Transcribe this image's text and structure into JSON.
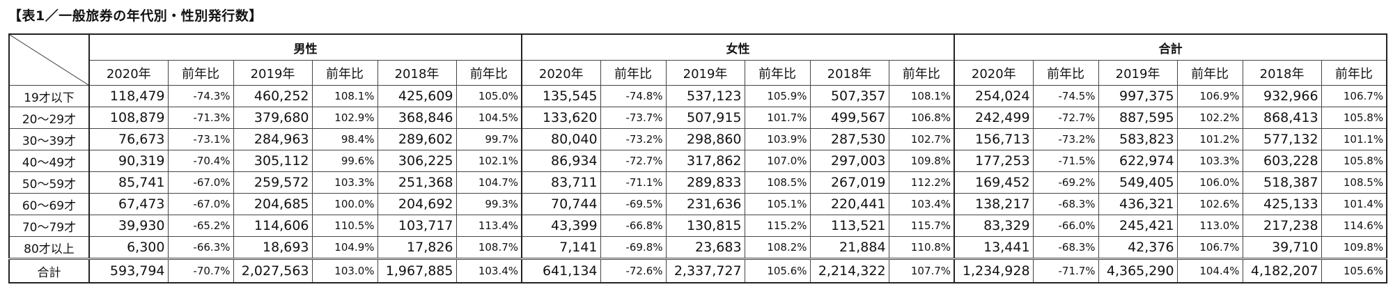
{
  "title": "【表1／一般旅券の年代別・性別発行数】",
  "groups": [
    "男性",
    "女性",
    "合計"
  ],
  "sub_headers": [
    "2020年",
    "前年比",
    "2019年",
    "前年比",
    "2018年",
    "前年比"
  ],
  "rows": [
    {
      "label": "19才以下",
      "values": [
        "118,479",
        "-74.3%",
        "460,252",
        "108.1%",
        "425,609",
        "105.0%",
        "135,545",
        "-74.8%",
        "537,123",
        "105.9%",
        "507,357",
        "108.1%",
        "254,024",
        "-74.5%",
        "997,375",
        "106.9%",
        "932,966",
        "106.7%"
      ]
    },
    {
      "label": "20〜29才",
      "values": [
        "108,879",
        "-71.3%",
        "379,680",
        "102.9%",
        "368,846",
        "104.5%",
        "133,620",
        "-73.7%",
        "507,915",
        "101.7%",
        "499,567",
        "106.8%",
        "242,499",
        "-72.7%",
        "887,595",
        "102.2%",
        "868,413",
        "105.8%"
      ]
    },
    {
      "label": "30〜39才",
      "values": [
        "76,673",
        "-73.1%",
        "284,963",
        "98.4%",
        "289,602",
        "99.7%",
        "80,040",
        "-73.2%",
        "298,860",
        "103.9%",
        "287,530",
        "102.7%",
        "156,713",
        "-73.2%",
        "583,823",
        "101.2%",
        "577,132",
        "101.1%"
      ]
    },
    {
      "label": "40〜49才",
      "values": [
        "90,319",
        "-70.4%",
        "305,112",
        "99.6%",
        "306,225",
        "102.1%",
        "86,934",
        "-72.7%",
        "317,862",
        "107.0%",
        "297,003",
        "109.8%",
        "177,253",
        "-71.5%",
        "622,974",
        "103.3%",
        "603,228",
        "105.8%"
      ]
    },
    {
      "label": "50〜59才",
      "values": [
        "85,741",
        "-67.0%",
        "259,572",
        "103.3%",
        "251,368",
        "104.7%",
        "83,711",
        "-71.1%",
        "289,833",
        "108.5%",
        "267,019",
        "112.2%",
        "169,452",
        "-69.2%",
        "549,405",
        "106.0%",
        "518,387",
        "108.5%"
      ]
    },
    {
      "label": "60〜69才",
      "values": [
        "67,473",
        "-67.0%",
        "204,685",
        "100.0%",
        "204,692",
        "99.3%",
        "70,744",
        "-69.5%",
        "231,636",
        "105.1%",
        "220,441",
        "103.4%",
        "138,217",
        "-68.3%",
        "436,321",
        "102.6%",
        "425,133",
        "101.4%"
      ]
    },
    {
      "label": "70〜79才",
      "values": [
        "39,930",
        "-65.2%",
        "114,606",
        "110.5%",
        "103,717",
        "113.4%",
        "43,399",
        "-66.8%",
        "130,815",
        "115.2%",
        "113,521",
        "115.7%",
        "83,329",
        "-66.0%",
        "245,421",
        "113.0%",
        "217,238",
        "114.6%"
      ]
    },
    {
      "label": "80才以上",
      "values": [
        "6,300",
        "-66.3%",
        "18,693",
        "104.9%",
        "17,826",
        "108.7%",
        "7,141",
        "-69.8%",
        "23,683",
        "108.2%",
        "21,884",
        "110.8%",
        "13,441",
        "-68.3%",
        "42,376",
        "106.7%",
        "39,710",
        "109.8%"
      ]
    }
  ],
  "total": {
    "label": "合計",
    "values": [
      "593,794",
      "-70.7%",
      "2,027,563",
      "103.0%",
      "1,967,885",
      "103.4%",
      "641,134",
      "-72.6%",
      "2,337,727",
      "105.6%",
      "2,214,322",
      "107.7%",
      "1,234,928",
      "-71.7%",
      "4,365,290",
      "104.4%",
      "4,182,207",
      "105.6%"
    ]
  }
}
